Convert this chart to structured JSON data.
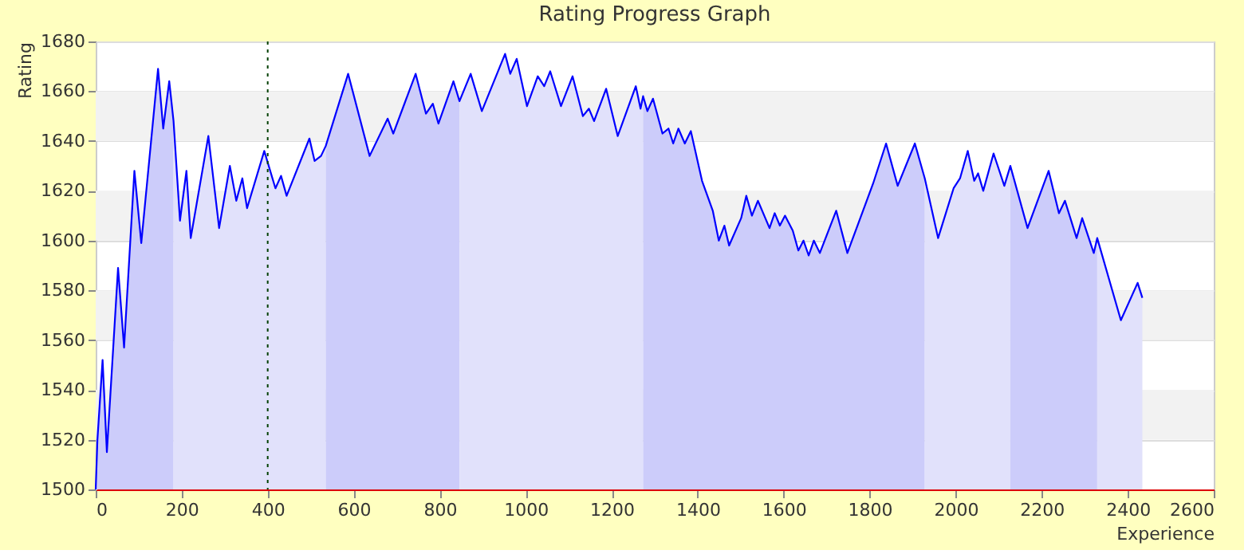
{
  "chart_data": {
    "type": "line",
    "title": "Rating Progress Graph",
    "xlabel": "Experience",
    "ylabel": "Rating",
    "xlim": [
      0,
      2600
    ],
    "ylim": [
      1500,
      1680
    ],
    "xticks": [
      0,
      200,
      400,
      600,
      800,
      1000,
      1200,
      1400,
      1600,
      1800,
      2000,
      2200,
      2400,
      2600
    ],
    "yticks": [
      1500,
      1520,
      1540,
      1560,
      1580,
      1600,
      1620,
      1640,
      1660,
      1680
    ],
    "grid": "y",
    "line_style": "solid",
    "marker": "none",
    "series": [
      {
        "type": "area",
        "color": "#ccccfa",
        "x": [
          0,
          4,
          16,
          26,
          52,
          66,
          90,
          106,
          145,
          157,
          171,
          181
        ],
        "values": [
          1500,
          1520,
          1552,
          1515,
          1589,
          1557,
          1628,
          1599,
          1669,
          1645,
          1664,
          1648
        ]
      },
      {
        "type": "area",
        "color": "#e1e1fb",
        "x": [
          181,
          196,
          211,
          221,
          262,
          287,
          312,
          327,
          341,
          352,
          392,
          418,
          431,
          444,
          497,
          509,
          524,
          535
        ],
        "values": [
          1648,
          1608,
          1628,
          1601,
          1642,
          1605,
          1630,
          1616,
          1625,
          1613,
          1636,
          1621,
          1626,
          1618,
          1641,
          1632,
          1634,
          1638
        ]
      },
      {
        "type": "area",
        "color": "#ccccfa",
        "x": [
          535,
          587,
          637,
          679,
          692,
          744,
          768,
          784,
          797,
          832,
          846
        ],
        "values": [
          1638,
          1667,
          1634,
          1649,
          1643,
          1667,
          1651,
          1655,
          1647,
          1664,
          1656
        ]
      },
      {
        "type": "area",
        "color": "#e1e1fb",
        "x": [
          846,
          872,
          898,
          952,
          964,
          979,
          1003,
          1028,
          1043,
          1057,
          1082,
          1109,
          1133,
          1147,
          1159,
          1187,
          1214,
          1256,
          1267,
          1273
        ],
        "values": [
          1656,
          1667,
          1652,
          1675,
          1667,
          1673,
          1654,
          1666,
          1662,
          1668,
          1654,
          1666,
          1650,
          1653,
          1648,
          1661,
          1642,
          1662,
          1653,
          1658
        ]
      },
      {
        "type": "area",
        "color": "#ccccfa",
        "x": [
          1273,
          1283,
          1296,
          1318,
          1332,
          1343,
          1355,
          1370,
          1384,
          1410,
          1435,
          1449,
          1462,
          1473,
          1501,
          1513,
          1526,
          1540,
          1567,
          1579,
          1591,
          1603,
          1621,
          1634,
          1646,
          1658,
          1670,
          1684,
          1722,
          1748,
          1808,
          1838,
          1865,
          1905,
          1928
        ],
        "values": [
          1658,
          1652,
          1657,
          1643,
          1645,
          1639,
          1645,
          1639,
          1644,
          1624,
          1612,
          1600,
          1606,
          1598,
          1609,
          1618,
          1610,
          1616,
          1605,
          1611,
          1606,
          1610,
          1604,
          1596,
          1600,
          1594,
          1600,
          1595,
          1612,
          1595,
          1623,
          1639,
          1622,
          1639,
          1625
        ]
      },
      {
        "type": "area",
        "color": "#e1e1fb",
        "x": [
          1928,
          1959,
          1995,
          2010,
          2028,
          2043,
          2052,
          2064,
          2088,
          2113,
          2127
        ],
        "values": [
          1625,
          1601,
          1621,
          1625,
          1636,
          1624,
          1627,
          1620,
          1635,
          1622,
          1630
        ]
      },
      {
        "type": "area",
        "color": "#ccccfa",
        "x": [
          2127,
          2167,
          2216,
          2240,
          2254,
          2281,
          2294,
          2321,
          2329
        ],
        "values": [
          1630,
          1605,
          1628,
          1611,
          1616,
          1601,
          1609,
          1595,
          1601
        ]
      },
      {
        "type": "area",
        "color": "#e1e1fb",
        "x": [
          2329,
          2384,
          2423,
          2434
        ],
        "values": [
          1601,
          1568,
          1583,
          1577
        ]
      },
      {
        "color": "#0000ff",
        "x": [
          0,
          4,
          16,
          26,
          52,
          66,
          90,
          106,
          145,
          157,
          171,
          181,
          196,
          211,
          221,
          262,
          287,
          312,
          327,
          341,
          352,
          392,
          418,
          431,
          444,
          497,
          509,
          524,
          535,
          587,
          637,
          679,
          692,
          744,
          768,
          784,
          797,
          832,
          846,
          872,
          898,
          952,
          964,
          979,
          1003,
          1028,
          1043,
          1057,
          1082,
          1109,
          1133,
          1147,
          1159,
          1187,
          1214,
          1256,
          1267,
          1273,
          1283,
          1296,
          1318,
          1332,
          1343,
          1355,
          1370,
          1384,
          1410,
          1435,
          1449,
          1462,
          1473,
          1501,
          1513,
          1526,
          1540,
          1567,
          1579,
          1591,
          1603,
          1621,
          1634,
          1646,
          1658,
          1670,
          1684,
          1722,
          1748,
          1808,
          1838,
          1865,
          1905,
          1928,
          1959,
          1995,
          2010,
          2028,
          2043,
          2052,
          2064,
          2088,
          2113,
          2127,
          2167,
          2216,
          2240,
          2254,
          2281,
          2294,
          2321,
          2329,
          2384,
          2423,
          2434
        ],
        "values": [
          1500,
          1520,
          1552,
          1515,
          1589,
          1557,
          1628,
          1599,
          1669,
          1645,
          1664,
          1648,
          1608,
          1628,
          1601,
          1642,
          1605,
          1630,
          1616,
          1625,
          1613,
          1636,
          1621,
          1626,
          1618,
          1641,
          1632,
          1634,
          1638,
          1667,
          1634,
          1649,
          1643,
          1667,
          1651,
          1655,
          1647,
          1664,
          1656,
          1667,
          1652,
          1675,
          1667,
          1673,
          1654,
          1666,
          1662,
          1668,
          1654,
          1666,
          1650,
          1653,
          1648,
          1661,
          1642,
          1662,
          1653,
          1658,
          1652,
          1657,
          1643,
          1645,
          1639,
          1645,
          1639,
          1644,
          1624,
          1612,
          1600,
          1606,
          1598,
          1609,
          1618,
          1610,
          1616,
          1605,
          1611,
          1606,
          1610,
          1604,
          1596,
          1600,
          1594,
          1600,
          1595,
          1612,
          1595,
          1623,
          1639,
          1622,
          1639,
          1625,
          1601,
          1621,
          1625,
          1636,
          1624,
          1627,
          1620,
          1635,
          1622,
          1630,
          1605,
          1628,
          1611,
          1616,
          1601,
          1609,
          1595,
          1601,
          1568,
          1583,
          1577
        ]
      }
    ],
    "ref_lines": [
      {
        "axis": "x",
        "value": 400,
        "color": "#004000",
        "line_style": "dotted"
      }
    ]
  }
}
